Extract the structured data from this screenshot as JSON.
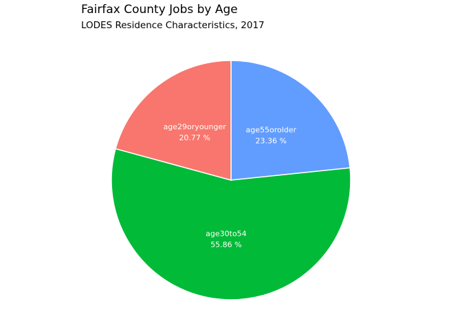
{
  "chart_data": {
    "type": "pie",
    "title": "Fairfax County Jobs by Age",
    "subtitle": "LODES Residence Characteristics, 2017",
    "slices": [
      {
        "label": "age55orolder",
        "value": 23.36,
        "value_text": "23.36 %",
        "color": "#619CFF"
      },
      {
        "label": "age30to54",
        "value": 55.86,
        "value_text": "55.86 %",
        "color": "#00BA38"
      },
      {
        "label": "age29oryounger",
        "value": 20.77,
        "value_text": "20.77 %",
        "color": "#F8766D"
      }
    ],
    "start": "12 o'clock",
    "direction": "clockwise",
    "legend": "none"
  }
}
